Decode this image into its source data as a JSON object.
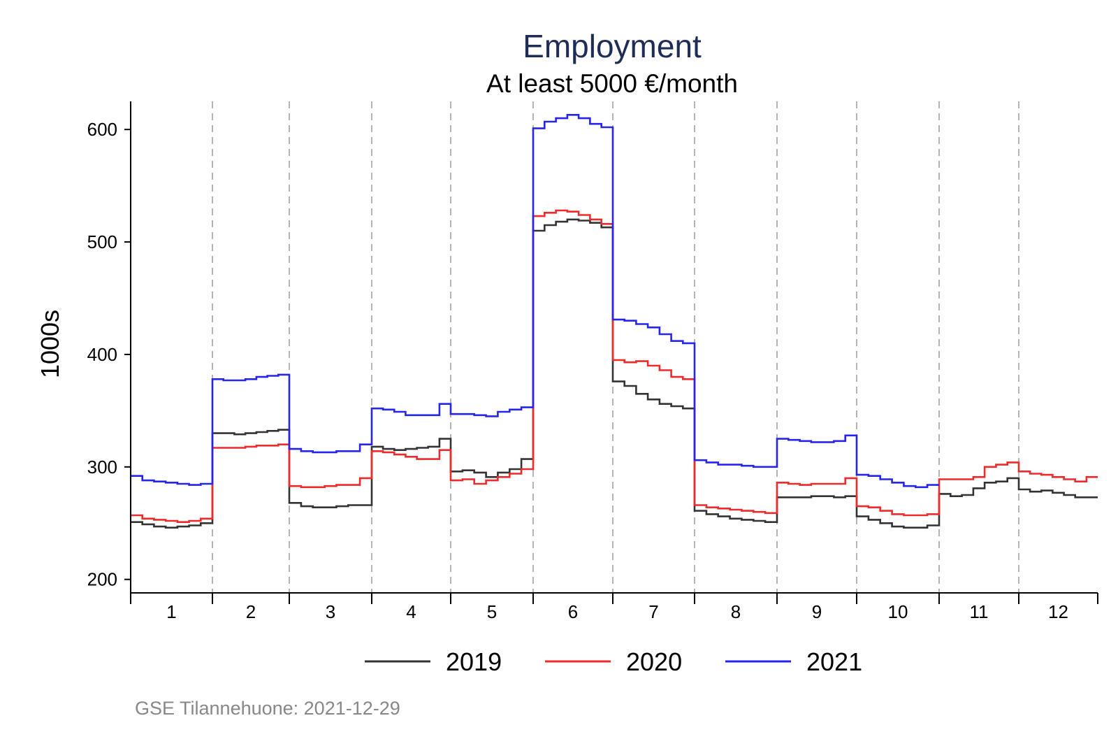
{
  "chart_data": {
    "type": "line",
    "title": "Employment",
    "subtitle": "At least 5000 €/month",
    "ylabel": "1000s",
    "xlabel": "",
    "ylim": [
      188,
      625
    ],
    "yticks": [
      200,
      300,
      400,
      500,
      600
    ],
    "categories": [
      "1",
      "2",
      "3",
      "4",
      "5",
      "6",
      "7",
      "8",
      "9",
      "10",
      "11",
      "12"
    ],
    "grid": "dashed vertical separators between months",
    "legend_position": "bottom",
    "note": "GSE Tilannehuone: 2021-12-29",
    "colors": {
      "title": "#1f2d56",
      "2019": "#333333",
      "2020": "#ee2a2a",
      "2021": "#2525ee",
      "separator": "#b5b5b5",
      "note": "#888888"
    },
    "series": [
      {
        "name": "2019",
        "values": [
          [
            251,
            249,
            247,
            246,
            247,
            248,
            250
          ],
          [
            330,
            330,
            329,
            330,
            331,
            332,
            333
          ],
          [
            268,
            265,
            264,
            264,
            265,
            266,
            266
          ],
          [
            318,
            316,
            315,
            316,
            317,
            318,
            325
          ],
          [
            296,
            297,
            295,
            291,
            295,
            298,
            307
          ],
          [
            510,
            515,
            518,
            520,
            519,
            517,
            513
          ],
          [
            376,
            372,
            365,
            360,
            356,
            354,
            352
          ],
          [
            261,
            258,
            256,
            254,
            253,
            252,
            251
          ],
          [
            273,
            273,
            273,
            274,
            274,
            273,
            274
          ],
          [
            256,
            253,
            250,
            247,
            246,
            246,
            248
          ],
          [
            276,
            274,
            275,
            281,
            286,
            287,
            290
          ],
          [
            280,
            278,
            279,
            277,
            275,
            273,
            273
          ]
        ]
      },
      {
        "name": "2020",
        "values": [
          [
            257,
            254,
            253,
            252,
            251,
            252,
            254
          ],
          [
            317,
            317,
            317,
            318,
            319,
            319,
            320
          ],
          [
            283,
            282,
            282,
            283,
            284,
            284,
            290
          ],
          [
            314,
            313,
            311,
            309,
            307,
            307,
            315
          ],
          [
            288,
            289,
            285,
            288,
            291,
            294,
            298
          ],
          [
            523,
            526,
            528,
            527,
            524,
            520,
            516
          ],
          [
            395,
            393,
            394,
            390,
            386,
            380,
            378
          ],
          [
            266,
            264,
            263,
            262,
            261,
            260,
            259
          ],
          [
            286,
            285,
            284,
            285,
            285,
            285,
            290
          ],
          [
            265,
            264,
            261,
            258,
            257,
            257,
            258
          ],
          [
            289,
            289,
            289,
            291,
            300,
            302,
            304
          ],
          [
            296,
            294,
            293,
            291,
            289,
            287,
            291
          ]
        ]
      },
      {
        "name": "2021",
        "values": [
          [
            292,
            288,
            287,
            286,
            285,
            284,
            285
          ],
          [
            378,
            377,
            377,
            378,
            380,
            381,
            382
          ],
          [
            316,
            314,
            313,
            313,
            314,
            314,
            320
          ],
          [
            352,
            351,
            349,
            346,
            346,
            346,
            356
          ],
          [
            347,
            347,
            346,
            345,
            349,
            351,
            353
          ],
          [
            601,
            607,
            610,
            613,
            610,
            605,
            602
          ],
          [
            431,
            430,
            427,
            424,
            418,
            412,
            410
          ],
          [
            306,
            304,
            302,
            302,
            301,
            300,
            300
          ],
          [
            325,
            324,
            323,
            322,
            322,
            323,
            328
          ],
          [
            293,
            292,
            289,
            286,
            283,
            282,
            284
          ],
          [
            null,
            null,
            null,
            null,
            null,
            null,
            null
          ],
          [
            null,
            null,
            null,
            null,
            null,
            null,
            null
          ]
        ]
      }
    ]
  }
}
